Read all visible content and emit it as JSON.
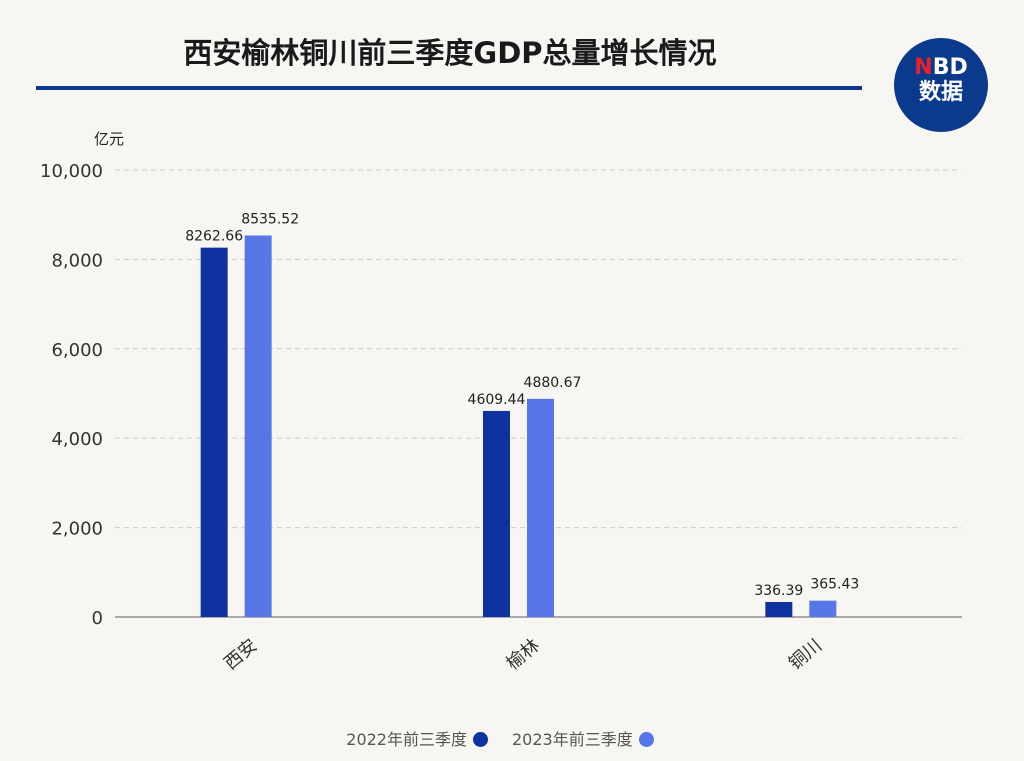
{
  "title": "西安榆林铜川前三季度GDP总量增长情况",
  "logo": {
    "line1_red": "N",
    "line1": "BD",
    "line2": "数据"
  },
  "chart_data": {
    "type": "bar",
    "title": "西安榆林铜川前三季度GDP总量增长情况",
    "ylabel": "亿元",
    "ylim": [
      0,
      10000
    ],
    "yticks": [
      0,
      2000,
      4000,
      6000,
      8000,
      10000
    ],
    "ytick_labels": [
      "0",
      "2,000",
      "4,000",
      "6,000",
      "8,000",
      "10,000"
    ],
    "categories": [
      "西安",
      "榆林",
      "铜川"
    ],
    "series": [
      {
        "name": "2022年前三季度",
        "color": "#0e33a0",
        "values": [
          8262.66,
          4609.44,
          336.39
        ],
        "labels": [
          "8262.66",
          "4609.44",
          "336.39"
        ]
      },
      {
        "name": "2023年前三季度",
        "color": "#5777e8",
        "values": [
          8535.52,
          4880.67,
          365.43
        ],
        "labels": [
          "8535.52",
          "4880.67",
          "365.43"
        ]
      }
    ],
    "grid": true,
    "legend": "bottom"
  }
}
